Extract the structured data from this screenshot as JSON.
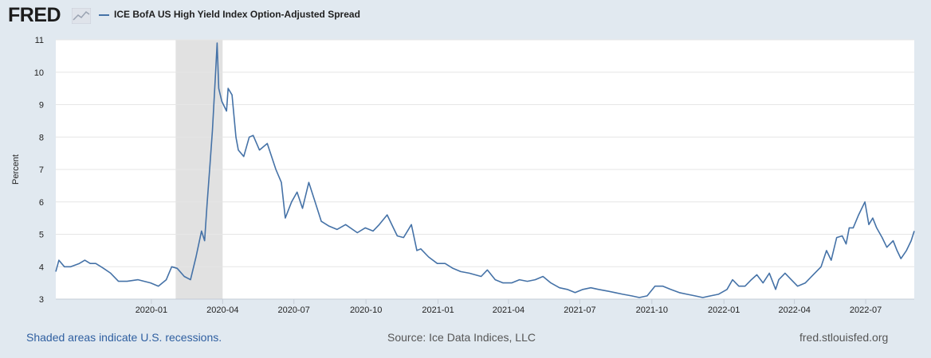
{
  "header": {
    "logo_text": "FRED",
    "legend_label": "ICE BofA US High Yield Index Option-Adjusted Spread"
  },
  "footer": {
    "recession_note": "Shaded areas indicate U.S. recessions.",
    "source": "Source: Ice Data Indices, LLC",
    "site": "fred.stlouisfed.org"
  },
  "colors": {
    "series": "#4572a7",
    "recession_band": "#e1e1e1",
    "background": "#e1e9f0",
    "plot": "#ffffff"
  },
  "icons": [
    "fred-chart-logo-icon"
  ],
  "chart_data": {
    "type": "line",
    "ylabel": "Percent",
    "xlabel": "",
    "ylim": [
      3,
      11
    ],
    "yticks": [
      3,
      4,
      5,
      6,
      7,
      8,
      9,
      10,
      11
    ],
    "xlim": [
      "2019-09-01",
      "2022-09-01"
    ],
    "xticks": [
      "2020-01",
      "2020-04",
      "2020-07",
      "2020-10",
      "2021-01",
      "2021-04",
      "2021-07",
      "2021-10",
      "2022-01",
      "2022-04",
      "2022-07"
    ],
    "grid": "horizontal",
    "legend_position": "top-left",
    "recession_shading": [
      {
        "start": "2020-02-01",
        "end": "2020-04-01"
      }
    ],
    "series": [
      {
        "name": "ICE BofA US High Yield Index Option-Adjusted Spread",
        "points": [
          [
            "2019-09-01",
            3.85
          ],
          [
            "2019-09-05",
            4.2
          ],
          [
            "2019-09-12",
            4.0
          ],
          [
            "2019-09-20",
            4.0
          ],
          [
            "2019-10-01",
            4.1
          ],
          [
            "2019-10-08",
            4.2
          ],
          [
            "2019-10-15",
            4.1
          ],
          [
            "2019-10-22",
            4.1
          ],
          [
            "2019-11-01",
            3.95
          ],
          [
            "2019-11-10",
            3.8
          ],
          [
            "2019-11-20",
            3.55
          ],
          [
            "2019-12-01",
            3.55
          ],
          [
            "2019-12-15",
            3.6
          ],
          [
            "2019-12-31",
            3.5
          ],
          [
            "2020-01-10",
            3.4
          ],
          [
            "2020-01-20",
            3.6
          ],
          [
            "2020-01-27",
            4.0
          ],
          [
            "2020-02-03",
            3.95
          ],
          [
            "2020-02-12",
            3.7
          ],
          [
            "2020-02-20",
            3.6
          ],
          [
            "2020-02-27",
            4.3
          ],
          [
            "2020-03-05",
            5.1
          ],
          [
            "2020-03-09",
            4.8
          ],
          [
            "2020-03-12",
            5.9
          ],
          [
            "2020-03-16",
            7.2
          ],
          [
            "2020-03-19",
            8.2
          ],
          [
            "2020-03-23",
            10.0
          ],
          [
            "2020-03-25",
            10.9
          ],
          [
            "2020-03-27",
            9.5
          ],
          [
            "2020-03-31",
            9.1
          ],
          [
            "2020-04-06",
            8.8
          ],
          [
            "2020-04-08",
            9.5
          ],
          [
            "2020-04-13",
            9.3
          ],
          [
            "2020-04-18",
            8.0
          ],
          [
            "2020-04-21",
            7.6
          ],
          [
            "2020-04-28",
            7.4
          ],
          [
            "2020-05-05",
            8.0
          ],
          [
            "2020-05-10",
            8.05
          ],
          [
            "2020-05-18",
            7.6
          ],
          [
            "2020-05-28",
            7.8
          ],
          [
            "2020-06-08",
            7.0
          ],
          [
            "2020-06-15",
            6.6
          ],
          [
            "2020-06-20",
            5.5
          ],
          [
            "2020-06-28",
            6.0
          ],
          [
            "2020-07-05",
            6.3
          ],
          [
            "2020-07-12",
            5.8
          ],
          [
            "2020-07-20",
            6.6
          ],
          [
            "2020-07-28",
            6.0
          ],
          [
            "2020-08-05",
            5.4
          ],
          [
            "2020-08-15",
            5.25
          ],
          [
            "2020-08-25",
            5.15
          ],
          [
            "2020-09-05",
            5.3
          ],
          [
            "2020-09-20",
            5.05
          ],
          [
            "2020-09-30",
            5.2
          ],
          [
            "2020-10-10",
            5.1
          ],
          [
            "2020-10-18",
            5.3
          ],
          [
            "2020-10-28",
            5.6
          ],
          [
            "2020-11-05",
            5.2
          ],
          [
            "2020-11-10",
            4.95
          ],
          [
            "2020-11-18",
            4.9
          ],
          [
            "2020-11-28",
            5.3
          ],
          [
            "2020-12-05",
            4.5
          ],
          [
            "2020-12-10",
            4.55
          ],
          [
            "2020-12-20",
            4.3
          ],
          [
            "2020-12-31",
            4.1
          ],
          [
            "2021-01-10",
            4.1
          ],
          [
            "2021-01-20",
            3.95
          ],
          [
            "2021-01-30",
            3.85
          ],
          [
            "2021-02-10",
            3.8
          ],
          [
            "2021-02-25",
            3.7
          ],
          [
            "2021-03-05",
            3.9
          ],
          [
            "2021-03-15",
            3.6
          ],
          [
            "2021-03-25",
            3.5
          ],
          [
            "2021-04-05",
            3.5
          ],
          [
            "2021-04-15",
            3.6
          ],
          [
            "2021-04-25",
            3.55
          ],
          [
            "2021-05-05",
            3.6
          ],
          [
            "2021-05-15",
            3.7
          ],
          [
            "2021-05-25",
            3.5
          ],
          [
            "2021-06-05",
            3.35
          ],
          [
            "2021-06-15",
            3.3
          ],
          [
            "2021-06-25",
            3.2
          ],
          [
            "2021-07-05",
            3.3
          ],
          [
            "2021-07-15",
            3.35
          ],
          [
            "2021-07-25",
            3.3
          ],
          [
            "2021-08-05",
            3.25
          ],
          [
            "2021-08-15",
            3.2
          ],
          [
            "2021-08-25",
            3.15
          ],
          [
            "2021-09-05",
            3.1
          ],
          [
            "2021-09-15",
            3.05
          ],
          [
            "2021-09-25",
            3.1
          ],
          [
            "2021-10-05",
            3.4
          ],
          [
            "2021-10-15",
            3.4
          ],
          [
            "2021-10-25",
            3.3
          ],
          [
            "2021-11-05",
            3.2
          ],
          [
            "2021-11-15",
            3.15
          ],
          [
            "2021-11-25",
            3.1
          ],
          [
            "2021-12-05",
            3.05
          ],
          [
            "2021-12-15",
            3.1
          ],
          [
            "2021-12-25",
            3.15
          ],
          [
            "2022-01-05",
            3.3
          ],
          [
            "2022-01-12",
            3.6
          ],
          [
            "2022-01-20",
            3.4
          ],
          [
            "2022-01-28",
            3.4
          ],
          [
            "2022-02-05",
            3.6
          ],
          [
            "2022-02-12",
            3.75
          ],
          [
            "2022-02-20",
            3.5
          ],
          [
            "2022-02-28",
            3.8
          ],
          [
            "2022-03-08",
            3.3
          ],
          [
            "2022-03-12",
            3.6
          ],
          [
            "2022-03-20",
            3.8
          ],
          [
            "2022-03-28",
            3.6
          ],
          [
            "2022-04-05",
            3.4
          ],
          [
            "2022-04-15",
            3.5
          ],
          [
            "2022-04-25",
            3.75
          ],
          [
            "2022-05-05",
            4.0
          ],
          [
            "2022-05-12",
            4.5
          ],
          [
            "2022-05-18",
            4.2
          ],
          [
            "2022-05-25",
            4.9
          ],
          [
            "2022-06-01",
            4.95
          ],
          [
            "2022-06-06",
            4.7
          ],
          [
            "2022-06-10",
            5.2
          ],
          [
            "2022-06-15",
            5.2
          ],
          [
            "2022-06-22",
            5.6
          ],
          [
            "2022-06-30",
            6.0
          ],
          [
            "2022-07-05",
            5.3
          ],
          [
            "2022-07-10",
            5.5
          ],
          [
            "2022-07-15",
            5.2
          ],
          [
            "2022-07-22",
            4.9
          ],
          [
            "2022-07-28",
            4.6
          ],
          [
            "2022-08-05",
            4.8
          ],
          [
            "2022-08-10",
            4.5
          ],
          [
            "2022-08-15",
            4.25
          ],
          [
            "2022-08-22",
            4.5
          ],
          [
            "2022-08-28",
            4.8
          ],
          [
            "2022-09-01",
            5.1
          ]
        ]
      }
    ]
  }
}
